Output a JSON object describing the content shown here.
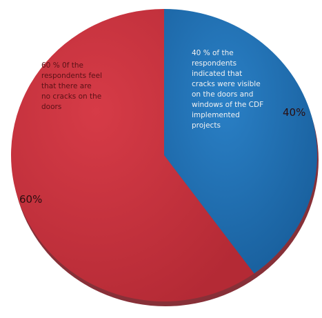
{
  "chart_data": {
    "type": "pie",
    "slices": [
      {
        "label": "40 % of the respondents indicated that cracks were visible on the doors and windows of the CDF implemented projects",
        "value": 40,
        "value_label": "40%",
        "color": "#1f6fb3"
      },
      {
        "label": "60 % 0f the respondents feel that there are no cracks on the doors",
        "value": 60,
        "value_label": "60%",
        "color": "#c4303c"
      }
    ],
    "annotation_color_blue": "#f2f2f2",
    "annotation_color_red": "#5a1116",
    "value_label_color": "#2a0d0f"
  }
}
